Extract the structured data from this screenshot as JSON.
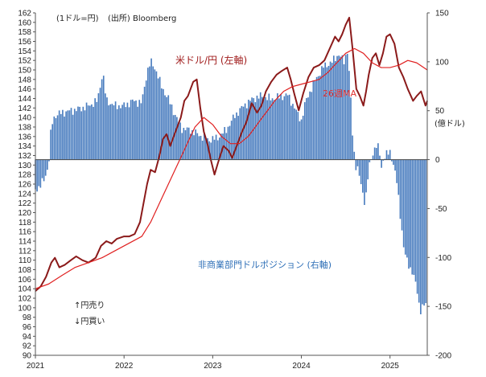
{
  "chart_data": {
    "type": "bar+line",
    "unit_left": "(1ドル=円)",
    "source": "(出所) Bloomberg",
    "unit_right": "(億ドル)",
    "x_ticks": [
      "2021",
      "2022",
      "2023",
      "2024",
      "2025"
    ],
    "y_left": {
      "min": 90,
      "max": 162,
      "step": 2
    },
    "y_right": {
      "min": -200,
      "max": 150,
      "ticks": [
        150,
        100,
        50,
        0,
        -50,
        -100,
        -150,
        -200
      ]
    },
    "x_range": [
      2021.0,
      2025.42
    ],
    "series": [
      {
        "name": "米ドル/円 (左軸)",
        "type": "line",
        "axis": "left",
        "color": "#8b1a1a",
        "points": [
          [
            2021.0,
            103.5
          ],
          [
            2021.06,
            104.5
          ],
          [
            2021.12,
            106.5
          ],
          [
            2021.18,
            109.5
          ],
          [
            2021.22,
            110.5
          ],
          [
            2021.27,
            108.5
          ],
          [
            2021.33,
            109.0
          ],
          [
            2021.4,
            110.0
          ],
          [
            2021.46,
            110.8
          ],
          [
            2021.53,
            110.0
          ],
          [
            2021.6,
            109.5
          ],
          [
            2021.68,
            110.5
          ],
          [
            2021.74,
            113.0
          ],
          [
            2021.8,
            114.0
          ],
          [
            2021.86,
            113.5
          ],
          [
            2021.92,
            114.5
          ],
          [
            2022.0,
            115.0
          ],
          [
            2022.06,
            115.0
          ],
          [
            2022.12,
            115.5
          ],
          [
            2022.18,
            118.0
          ],
          [
            2022.22,
            122.0
          ],
          [
            2022.26,
            126.0
          ],
          [
            2022.3,
            129.0
          ],
          [
            2022.35,
            128.5
          ],
          [
            2022.4,
            132.0
          ],
          [
            2022.44,
            135.5
          ],
          [
            2022.48,
            136.5
          ],
          [
            2022.52,
            134.0
          ],
          [
            2022.58,
            137.0
          ],
          [
            2022.64,
            140.0
          ],
          [
            2022.68,
            143.5
          ],
          [
            2022.72,
            144.5
          ],
          [
            2022.78,
            147.5
          ],
          [
            2022.82,
            148.0
          ],
          [
            2022.86,
            142.0
          ],
          [
            2022.9,
            137.0
          ],
          [
            2022.94,
            134.5
          ],
          [
            2022.98,
            131.0
          ],
          [
            2023.02,
            128.0
          ],
          [
            2023.06,
            130.5
          ],
          [
            2023.12,
            134.0
          ],
          [
            2023.18,
            133.0
          ],
          [
            2023.22,
            131.5
          ],
          [
            2023.28,
            134.5
          ],
          [
            2023.33,
            137.0
          ],
          [
            2023.38,
            139.0
          ],
          [
            2023.44,
            143.0
          ],
          [
            2023.5,
            141.0
          ],
          [
            2023.55,
            142.5
          ],
          [
            2023.6,
            145.5
          ],
          [
            2023.66,
            147.5
          ],
          [
            2023.72,
            149.0
          ],
          [
            2023.78,
            149.8
          ],
          [
            2023.84,
            150.5
          ],
          [
            2023.88,
            148.0
          ],
          [
            2023.92,
            145.0
          ],
          [
            2023.97,
            141.5
          ],
          [
            2024.02,
            145.0
          ],
          [
            2024.08,
            148.5
          ],
          [
            2024.14,
            150.5
          ],
          [
            2024.2,
            151.0
          ],
          [
            2024.26,
            152.0
          ],
          [
            2024.32,
            154.5
          ],
          [
            2024.38,
            157.0
          ],
          [
            2024.42,
            156.0
          ],
          [
            2024.46,
            157.5
          ],
          [
            2024.5,
            159.5
          ],
          [
            2024.54,
            161.0
          ],
          [
            2024.58,
            154.0
          ],
          [
            2024.62,
            146.0
          ],
          [
            2024.66,
            144.5
          ],
          [
            2024.7,
            142.5
          ],
          [
            2024.73,
            145.5
          ],
          [
            2024.76,
            149.0
          ],
          [
            2024.8,
            152.5
          ],
          [
            2024.84,
            153.5
          ],
          [
            2024.88,
            151.0
          ],
          [
            2024.92,
            153.5
          ],
          [
            2024.96,
            157.0
          ],
          [
            2025.0,
            157.5
          ],
          [
            2025.05,
            155.5
          ],
          [
            2025.1,
            150.5
          ],
          [
            2025.15,
            148.5
          ],
          [
            2025.2,
            146.0
          ],
          [
            2025.26,
            143.5
          ],
          [
            2025.3,
            144.5
          ],
          [
            2025.35,
            145.5
          ],
          [
            2025.4,
            142.5
          ],
          [
            2025.42,
            143.5
          ]
        ]
      },
      {
        "name": "26週MA",
        "type": "line",
        "axis": "left",
        "color": "#e02020",
        "points": [
          [
            2021.0,
            104.0
          ],
          [
            2021.15,
            105.0
          ],
          [
            2021.3,
            106.8
          ],
          [
            2021.45,
            108.5
          ],
          [
            2021.6,
            109.5
          ],
          [
            2021.75,
            110.5
          ],
          [
            2021.9,
            112.0
          ],
          [
            2022.05,
            113.5
          ],
          [
            2022.2,
            115.0
          ],
          [
            2022.3,
            118.0
          ],
          [
            2022.4,
            122.0
          ],
          [
            2022.5,
            126.0
          ],
          [
            2022.6,
            130.0
          ],
          [
            2022.7,
            134.0
          ],
          [
            2022.8,
            138.0
          ],
          [
            2022.9,
            140.0
          ],
          [
            2023.0,
            138.5
          ],
          [
            2023.1,
            136.0
          ],
          [
            2023.2,
            134.5
          ],
          [
            2023.3,
            134.5
          ],
          [
            2023.4,
            136.0
          ],
          [
            2023.5,
            138.5
          ],
          [
            2023.6,
            141.0
          ],
          [
            2023.7,
            143.5
          ],
          [
            2023.8,
            145.5
          ],
          [
            2023.9,
            146.5
          ],
          [
            2024.0,
            147.0
          ],
          [
            2024.1,
            147.5
          ],
          [
            2024.2,
            148.0
          ],
          [
            2024.3,
            149.5
          ],
          [
            2024.4,
            151.5
          ],
          [
            2024.5,
            153.5
          ],
          [
            2024.6,
            154.5
          ],
          [
            2024.7,
            153.5
          ],
          [
            2024.8,
            151.5
          ],
          [
            2024.9,
            150.5
          ],
          [
            2025.0,
            150.5
          ],
          [
            2025.1,
            151.0
          ],
          [
            2025.2,
            152.0
          ],
          [
            2025.3,
            151.5
          ],
          [
            2025.42,
            150.0
          ]
        ]
      },
      {
        "name": "非商業部門ドルポジション (右軸)",
        "type": "bar",
        "axis": "right",
        "color": "#4a7dbf",
        "anchors": [
          [
            2021.0,
            -30
          ],
          [
            2021.05,
            -28
          ],
          [
            2021.1,
            -20
          ],
          [
            2021.15,
            -5
          ],
          [
            2021.18,
            35
          ],
          [
            2021.22,
            45
          ],
          [
            2021.3,
            48
          ],
          [
            2021.4,
            50
          ],
          [
            2021.5,
            52
          ],
          [
            2021.6,
            55
          ],
          [
            2021.7,
            60
          ],
          [
            2021.76,
            90
          ],
          [
            2021.8,
            60
          ],
          [
            2021.9,
            55
          ],
          [
            2022.0,
            55
          ],
          [
            2022.1,
            60
          ],
          [
            2022.2,
            58
          ],
          [
            2022.26,
            90
          ],
          [
            2022.3,
            100
          ],
          [
            2022.36,
            92
          ],
          [
            2022.42,
            75
          ],
          [
            2022.5,
            62
          ],
          [
            2022.58,
            45
          ],
          [
            2022.65,
            32
          ],
          [
            2022.75,
            30
          ],
          [
            2022.85,
            25
          ],
          [
            2022.95,
            20
          ],
          [
            2023.05,
            22
          ],
          [
            2023.15,
            30
          ],
          [
            2023.25,
            45
          ],
          [
            2023.35,
            55
          ],
          [
            2023.45,
            62
          ],
          [
            2023.55,
            65
          ],
          [
            2023.65,
            62
          ],
          [
            2023.75,
            64
          ],
          [
            2023.85,
            66
          ],
          [
            2023.95,
            48
          ],
          [
            2024.0,
            40
          ],
          [
            2024.05,
            60
          ],
          [
            2024.15,
            80
          ],
          [
            2024.25,
            95
          ],
          [
            2024.35,
            100
          ],
          [
            2024.42,
            108
          ],
          [
            2024.48,
            100
          ],
          [
            2024.52,
            112
          ],
          [
            2024.55,
            75
          ],
          [
            2024.58,
            20
          ],
          [
            2024.61,
            -5
          ],
          [
            2024.64,
            -10
          ],
          [
            2024.68,
            -30
          ],
          [
            2024.72,
            -45
          ],
          [
            2024.76,
            -10
          ],
          [
            2024.8,
            5
          ],
          [
            2024.84,
            15
          ],
          [
            2024.88,
            10
          ],
          [
            2024.9,
            -10
          ],
          [
            2024.92,
            0
          ],
          [
            2024.96,
            5
          ],
          [
            2025.0,
            8
          ],
          [
            2025.04,
            -5
          ],
          [
            2025.08,
            -25
          ],
          [
            2025.12,
            -60
          ],
          [
            2025.16,
            -95
          ],
          [
            2025.2,
            -105
          ],
          [
            2025.25,
            -115
          ],
          [
            2025.3,
            -130
          ],
          [
            2025.34,
            -155
          ],
          [
            2025.38,
            -150
          ],
          [
            2025.42,
            -145
          ]
        ]
      }
    ],
    "annotations": {
      "usdjpy_label": "米ドル/円 (左軸)",
      "ma_label": "26週MA",
      "position_label": "非商業部門ドルポジション (右軸)",
      "yen_sell": "↑円売り",
      "yen_buy": "↓円買い"
    }
  }
}
